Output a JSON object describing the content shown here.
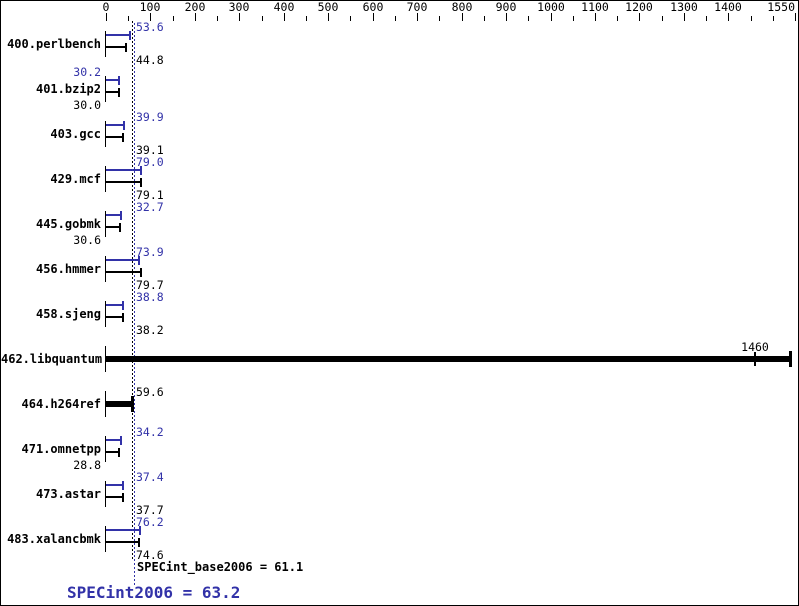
{
  "chart_data": {
    "type": "bar",
    "orientation": "horizontal",
    "description": "SPEC CPU2006 integer speed result bar chart, peak (blue) and base (black) per benchmark",
    "axis": {
      "min": 0,
      "max": 1550,
      "minor_step": 50,
      "labeled_ticks": [
        0,
        100,
        200,
        300,
        400,
        500,
        600,
        700,
        800,
        900,
        1000,
        1100,
        1200,
        1300,
        1400,
        1550
      ],
      "grid": false,
      "position": "top"
    },
    "benchmarks": [
      {
        "name": "400.perlbench",
        "peak": "53.6",
        "base": "44.8",
        "peak_side": "right",
        "base_side": "right"
      },
      {
        "name": "401.bzip2",
        "peak": "30.2",
        "base": "30.0",
        "peak_side": "left",
        "base_side": "left"
      },
      {
        "name": "403.gcc",
        "peak": "39.9",
        "base": "39.1",
        "peak_side": "right",
        "base_side": "right"
      },
      {
        "name": "429.mcf",
        "peak": "79.0",
        "base": "79.1",
        "peak_side": "right",
        "base_side": "right"
      },
      {
        "name": "445.gobmk",
        "peak": "32.7",
        "base": "30.6",
        "peak_side": "right",
        "base_side": "left"
      },
      {
        "name": "456.hmmer",
        "peak": "73.9",
        "base": "79.7",
        "peak_side": "right",
        "base_side": "right"
      },
      {
        "name": "458.sjeng",
        "peak": "38.8",
        "base": "38.2",
        "peak_side": "right",
        "base_side": "right"
      },
      {
        "name": "462.libquantum",
        "single": "1460",
        "bar_to_edge": true
      },
      {
        "name": "464.h264ref",
        "single": "59.6"
      },
      {
        "name": "471.omnetpp",
        "peak": "34.2",
        "base": "28.8",
        "peak_side": "right",
        "base_side": "left"
      },
      {
        "name": "473.astar",
        "peak": "37.4",
        "base": "37.7",
        "peak_side": "right",
        "base_side": "right"
      },
      {
        "name": "483.xalancbmk",
        "peak": "76.2",
        "base": "74.6",
        "peak_side": "right",
        "base_side": "right"
      }
    ],
    "reference_lines": {
      "base": {
        "value": 61.1,
        "style": "dotted"
      },
      "peak": {
        "value": 63.2,
        "style": "dotted"
      }
    },
    "summary": {
      "base_text": "SPECint_base2006 = 61.1",
      "base_value": 61.1,
      "peak_text": "SPECint2006 = 63.2",
      "peak_value": 63.2
    },
    "colors": {
      "peak": "#3232a8",
      "base": "#000000",
      "background": "#ffffff"
    }
  }
}
